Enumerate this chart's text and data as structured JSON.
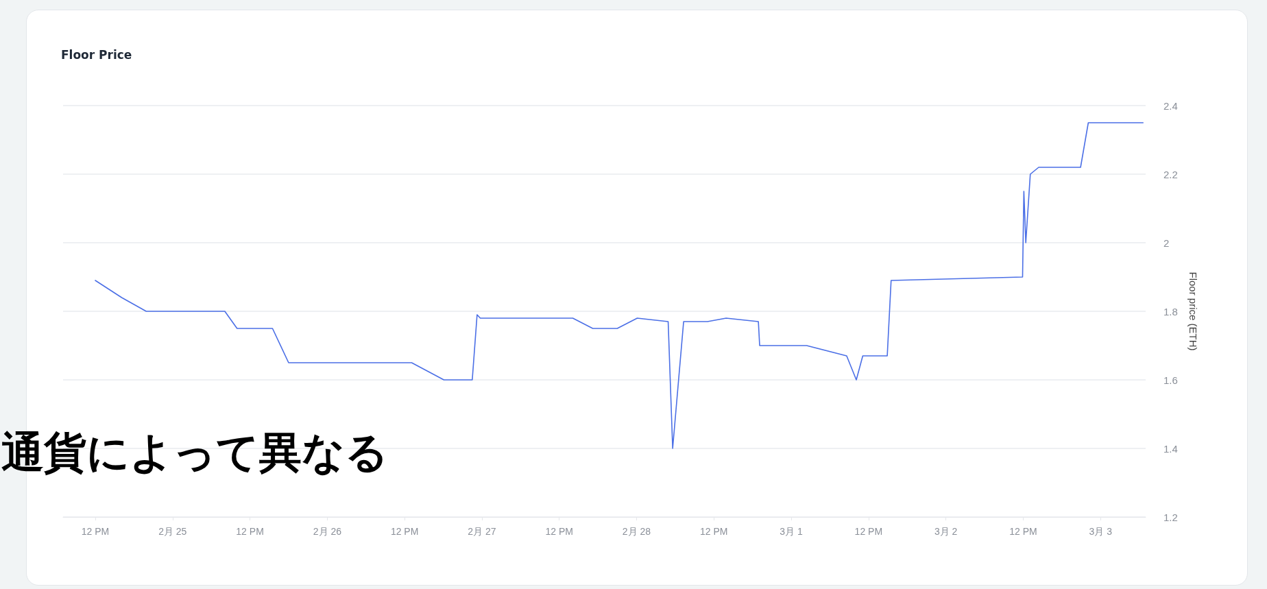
{
  "chart_data": {
    "type": "line",
    "title": "Floor Price",
    "y2label": "Floor price (ETH)",
    "annotations": [
      "通貨によって異なる"
    ],
    "x": [
      "--02-24T12:00",
      "--02-24T16:06",
      "--02-24T19:54",
      "--02-25T08:06",
      "--02-25T10:00",
      "--02-25T15:30",
      "--02-25T18:00",
      "--02-26T13:06",
      "--02-26T18:06",
      "--02-26T22:30",
      "--02-26T23:15",
      "--02-26T23:45",
      "--02-27T14:06",
      "--02-27T17:12",
      "--02-27T21:00",
      "--02-28T00:06",
      "--02-28T04:54",
      "--02-28T05:36",
      "--02-28T07:18",
      "--02-28T11:00",
      "--02-28T13:54",
      "--02-28T18:54",
      "--02-28T19:06",
      "--03-01T02:24",
      "--03-01T08:36",
      "--03-01T10:06",
      "--03-01T11:06",
      "--03-01T14:54",
      "--03-01T15:30",
      "--03-02T11:54",
      "--03-02T12:06",
      "--03-02T12:24",
      "--03-02T13:06",
      "--03-02T14:24",
      "--03-02T20:54",
      "--03-02T22:06",
      "--03-03T06:36"
    ],
    "series": [
      {
        "color": "#4b6fe6",
        "axis": "y2",
        "values": [
          1.89,
          1.84,
          1.8,
          1.8,
          1.75,
          1.75,
          1.65,
          1.65,
          1.6,
          1.6,
          1.79,
          1.78,
          1.78,
          1.75,
          1.75,
          1.78,
          1.77,
          1.4,
          1.77,
          1.77,
          1.78,
          1.77,
          1.7,
          1.7,
          1.67,
          1.6,
          1.67,
          1.67,
          1.89,
          1.9,
          2.15,
          2.0,
          2.2,
          2.22,
          2.22,
          2.35,
          2.35
        ]
      }
    ],
    "xlim": [
      "--02-24T07:00",
      "--03-03T07:00"
    ],
    "xticks": [
      {
        "value": "--02-24T12:00",
        "label": "12 PM"
      },
      {
        "value": "--02-25",
        "label": "2月 25"
      },
      {
        "value": "--02-25T12:00",
        "label": "12 PM"
      },
      {
        "value": "--02-26",
        "label": "2月 26"
      },
      {
        "value": "--02-26T12:00",
        "label": "12 PM"
      },
      {
        "value": "--02-27",
        "label": "2月 27"
      },
      {
        "value": "--02-27T12:00",
        "label": "12 PM"
      },
      {
        "value": "--02-28",
        "label": "2月 28"
      },
      {
        "value": "--02-28T12:00",
        "label": "12 PM"
      },
      {
        "value": "--03-01",
        "label": "3月 1"
      },
      {
        "value": "--03-01T12:00",
        "label": "12 PM"
      },
      {
        "value": "--03-02",
        "label": "3月 2"
      },
      {
        "value": "--03-02T12:00",
        "label": "12 PM"
      },
      {
        "value": "--03-03",
        "label": "3月 3"
      }
    ],
    "y2lim": [
      1.2,
      2.4
    ],
    "y2ticks": [
      1.2,
      1.4,
      1.6,
      1.8,
      2,
      2.2,
      2.4
    ],
    "grid": "y",
    "marker": "none",
    "line_style": "solid"
  }
}
